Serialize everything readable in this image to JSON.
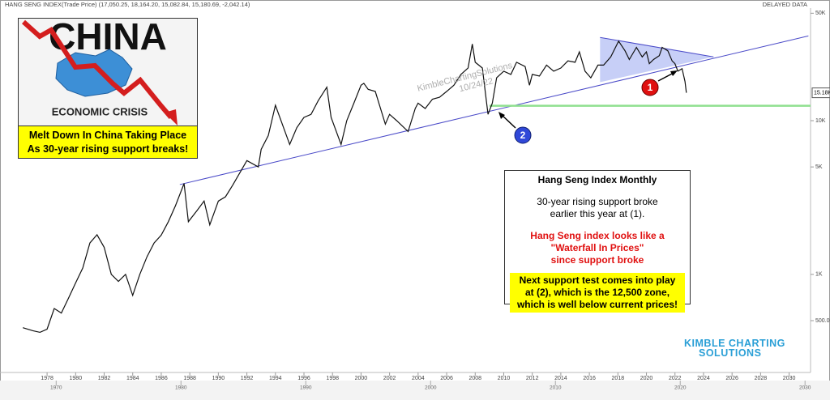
{
  "chart_data": {
    "type": "line",
    "title": "HANG SENG INDEX(Trade Price) (17,050.25, 18,164.20, 15,082.84, 15,180.69, -2,042.14)",
    "status": "DELAYED DATA",
    "color": "#111111",
    "log_y": true,
    "x": [
      1976.3,
      1977,
      1977.5,
      1978,
      1978.5,
      1979,
      1979.5,
      1980,
      1980.5,
      1981,
      1981.5,
      1982,
      1982.5,
      1983,
      1983.5,
      1984,
      1984.5,
      1985,
      1985.5,
      1986,
      1986.5,
      1987,
      1987.6,
      1987.9,
      1988.5,
      1989,
      1989.4,
      1990,
      1990.5,
      1991,
      1992,
      1992.8,
      1993,
      1993.5,
      1994,
      1995,
      1995.5,
      1996,
      1996.5,
      1997,
      1997.6,
      1997.9,
      1998.6,
      1999,
      1999.5,
      2000,
      2000.2,
      2000.5,
      2001,
      2001.7,
      2002,
      2002.5,
      2003.3,
      2003.8,
      2004,
      2004.5,
      2005,
      2005.5,
      2006,
      2006.5,
      2007,
      2007.5,
      2007.8,
      2008,
      2008.5,
      2008.8,
      2008.9,
      2009.2,
      2009.5,
      2010,
      2010.5,
      2010.9,
      2011.5,
      2011.8,
      2012,
      2012.5,
      2013,
      2013.5,
      2014,
      2014.5,
      2015,
      2015.3,
      2015.7,
      2016.1,
      2016.6,
      2017,
      2017.5,
      2018.05,
      2018.5,
      2018.8,
      2019.3,
      2019.7,
      2020,
      2020.2,
      2020.5,
      2020.9,
      2021.1,
      2021.5,
      2021.8,
      2022,
      2022.2,
      2022.5,
      2022.7,
      2022.8
    ],
    "values": [
      450,
      430,
      420,
      440,
      600,
      560,
      700,
      880,
      1100,
      1600,
      1810,
      1500,
      1000,
      900,
      1000,
      730,
      1000,
      1300,
      1600,
      1800,
      2200,
      2800,
      3900,
      2200,
      2600,
      3000,
      2100,
      3000,
      3200,
      3800,
      5500,
      5000,
      6500,
      8000,
      12600,
      7000,
      9000,
      10500,
      11000,
      13500,
      16500,
      10500,
      7000,
      10000,
      13000,
      17000,
      17500,
      16000,
      15500,
      9500,
      11000,
      10000,
      8500,
      12000,
      13000,
      12000,
      13800,
      14200,
      15500,
      17000,
      20000,
      22000,
      31500,
      24000,
      22000,
      13000,
      11000,
      13000,
      19000,
      21000,
      20000,
      24000,
      22500,
      17000,
      20000,
      19500,
      23000,
      21000,
      22000,
      24500,
      24000,
      28000,
      21000,
      19000,
      23000,
      23000,
      26000,
      32900,
      28500,
      25000,
      30000,
      26000,
      28000,
      23500,
      25000,
      26500,
      30000,
      28500,
      24500,
      23500,
      21000,
      21800,
      18000,
      15180
    ],
    "xlim": [
      1974.7,
      2031.5
    ],
    "ylim": [
      230,
      54000
    ],
    "xticks": [
      1978,
      1980,
      1982,
      1984,
      1986,
      1988,
      1990,
      1992,
      1994,
      1996,
      1998,
      2000,
      2002,
      2004,
      2006,
      2008,
      2010,
      2012,
      2014,
      2016,
      2018,
      2020,
      2022,
      2024,
      2026,
      2028,
      2030
    ],
    "yticks": [
      {
        "value": 50000,
        "label": "50K"
      },
      {
        "value": 10000,
        "label": "10K"
      },
      {
        "value": 5000,
        "label": "5K"
      },
      {
        "value": 1000,
        "label": "1K"
      },
      {
        "value": 500,
        "label": "500.00"
      }
    ],
    "last_price": {
      "value": 15180.69,
      "label": "15.18K"
    },
    "trendlines": [
      {
        "x": [
          1987.3,
          2031.35
        ],
        "y": [
          3840,
          35600
        ],
        "color": "#4a4ac8"
      },
      {
        "x": [
          2016.75,
          2024.7
        ],
        "y": [
          34800,
          26000
        ],
        "color": "#4a4ac8"
      },
      {
        "x": [
          2009,
          2031.5
        ],
        "y": [
          12500,
          12500
        ],
        "color": "#8fe08f"
      }
    ],
    "triangle": {
      "x": [
        2016.75,
        2024.7,
        2016.75
      ],
      "y": [
        34800,
        26000,
        17800
      ],
      "color": "#b9c3f5"
    },
    "overview": {
      "xlim": [
        1965.5,
        2032
      ],
      "xticks": [
        1970,
        1980,
        1990,
        2000,
        2010,
        2020,
        2030
      ]
    },
    "annotations": {
      "markers": [
        "1",
        "2"
      ],
      "watermark": [
        "KimbleChartingSolutions",
        "10/24/22"
      ],
      "inset_title": "CHINA",
      "inset_subtitle": "ECONOMIC CRISIS",
      "inset_caption": [
        "Melt Down In China Taking Place",
        "As 30-year rising support breaks!"
      ],
      "note_title": "Hang Seng Index Monthly",
      "note_body": [
        "30-year rising support broke",
        "earlier this year at (1)."
      ],
      "note_red": [
        "Hang Seng index looks like a",
        "\"Waterfall In Prices\"",
        "since support broke"
      ],
      "note_highlight": [
        "Next support test comes into play",
        "at (2), which is the 12,500 zone,",
        "which is well below current prices!"
      ],
      "logo": [
        "KIMBLE CHARTING",
        "SOLUTIONS"
      ]
    }
  }
}
